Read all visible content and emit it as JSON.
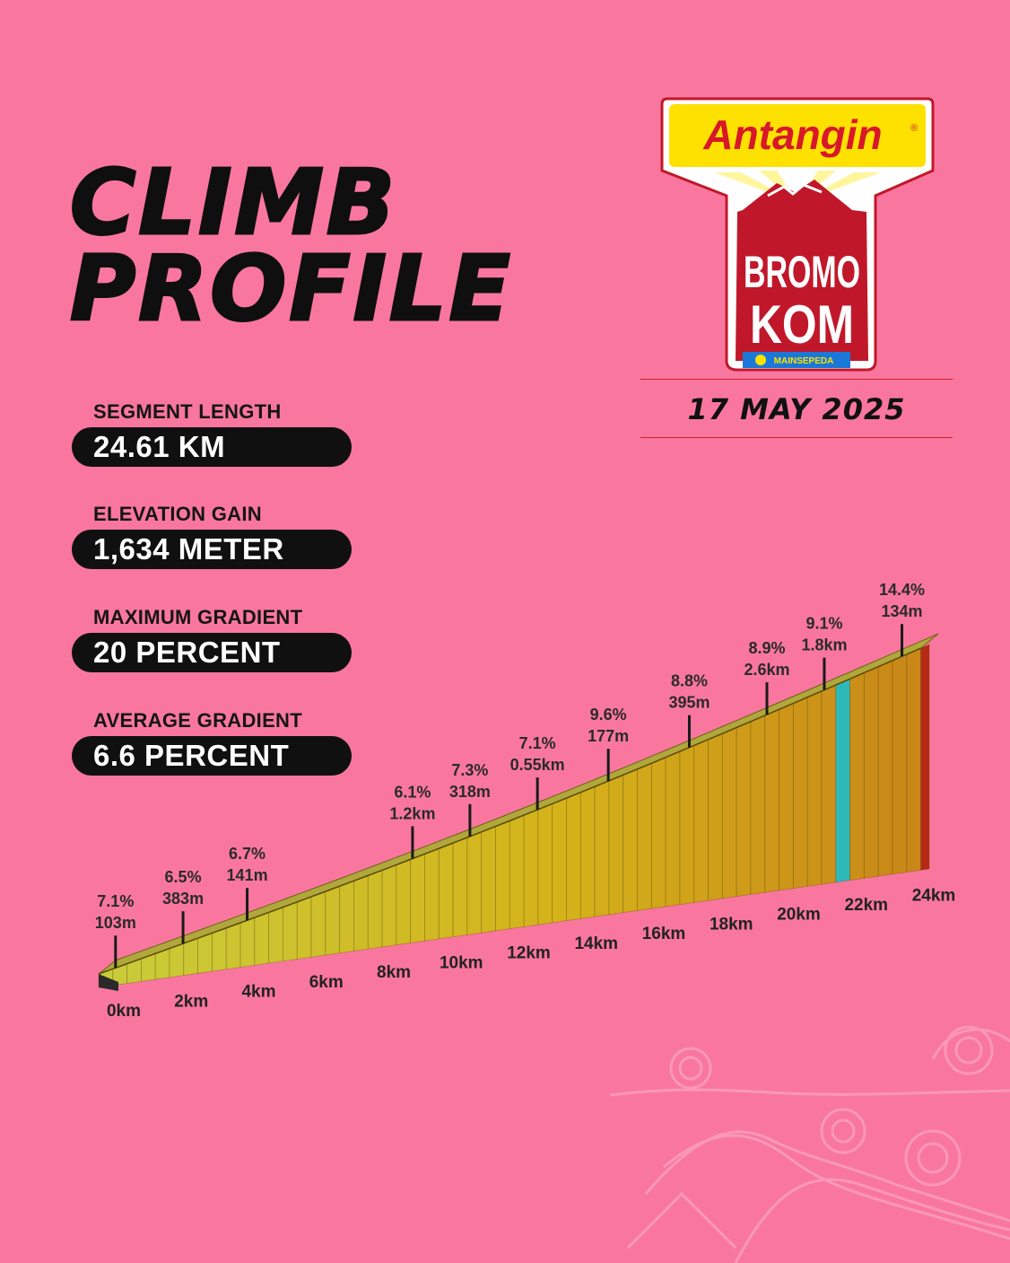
{
  "title": "CLIMB\nPROFILE",
  "date": "17 MAY 2025",
  "logo": {
    "brand": "Antangin",
    "registered": "®",
    "event_line1": "BROMO",
    "event_line2": "KOM",
    "sponsor": "MAINSEPEDA"
  },
  "stats": [
    {
      "label": "SEGMENT LENGTH",
      "value": "24.61 KM"
    },
    {
      "label": "ELEVATION GAIN",
      "value": "1,634 METER"
    },
    {
      "label": "MAXIMUM GRADIENT",
      "value": "20 PERCENT"
    },
    {
      "label": "AVERAGE GRADIENT",
      "value": "6.6 PERCENT"
    }
  ],
  "colors": {
    "background": "#f9779f",
    "pill": "#101010",
    "rule": "#d0202a",
    "profile_low": "#c9cc3a",
    "profile_mid": "#d4b21a",
    "profile_high": "#c88418",
    "accent_teal": "#2fb8b8",
    "accent_red": "#b52a14"
  },
  "chart_data": {
    "type": "area",
    "x_unit": "km",
    "x_ticks": [
      "0km",
      "2km",
      "4km",
      "6km",
      "8km",
      "10km",
      "12km",
      "14km",
      "16km",
      "18km",
      "20km",
      "22km",
      "24km"
    ],
    "x_tick_values": [
      0,
      2,
      4,
      6,
      8,
      10,
      12,
      14,
      16,
      18,
      20,
      22,
      24
    ],
    "xlim": [
      0,
      24.61
    ],
    "elevation_gain_m": 1634,
    "annotations": [
      {
        "km": 0.5,
        "gradient": "7.1%",
        "length": "103m"
      },
      {
        "km": 2.5,
        "gradient": "6.5%",
        "length": "383m"
      },
      {
        "km": 4.4,
        "gradient": "6.7%",
        "length": "141m"
      },
      {
        "km": 9.3,
        "gradient": "6.1%",
        "length": "1.2km"
      },
      {
        "km": 11.0,
        "gradient": "7.3%",
        "length": "318m"
      },
      {
        "km": 13.0,
        "gradient": "7.1%",
        "length": "0.55km"
      },
      {
        "km": 15.1,
        "gradient": "9.6%",
        "length": "177m"
      },
      {
        "km": 17.5,
        "gradient": "8.8%",
        "length": "395m"
      },
      {
        "km": 19.8,
        "gradient": "8.9%",
        "length": "2.6km"
      },
      {
        "km": 21.5,
        "gradient": "9.1%",
        "length": "1.8km"
      },
      {
        "km": 23.8,
        "gradient": "14.4%",
        "length": "134m"
      }
    ]
  }
}
